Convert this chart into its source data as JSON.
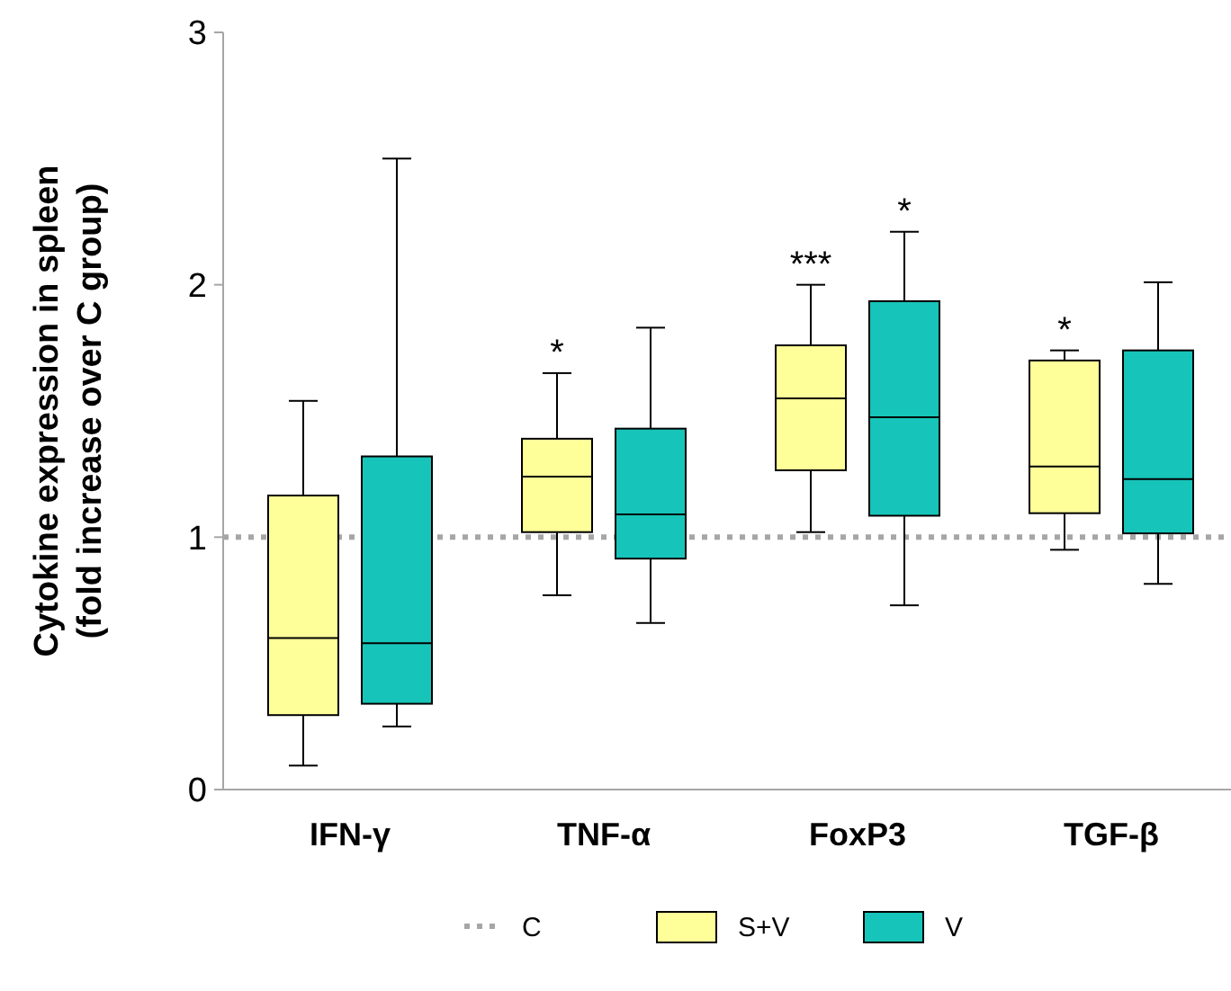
{
  "chart_data": {
    "type": "box",
    "ylabel": "Cytokine expression in spleen\n(fold increase over C group)",
    "categories": [
      "IFN-γ",
      "TNF-α",
      "FoxP3",
      "TGF-β"
    ],
    "series": [
      {
        "name": "S+V",
        "color": "#ffff99",
        "boxes": [
          {
            "low": 0.095,
            "q1": 0.295,
            "median": 0.6,
            "q3": 1.165,
            "high": 1.54
          },
          {
            "low": 0.77,
            "q1": 1.02,
            "median": 1.24,
            "q3": 1.39,
            "high": 1.65
          },
          {
            "low": 1.02,
            "q1": 1.265,
            "median": 1.55,
            "q3": 1.76,
            "high": 2.0
          },
          {
            "low": 0.95,
            "q1": 1.095,
            "median": 1.28,
            "q3": 1.7,
            "high": 1.74
          }
        ]
      },
      {
        "name": "V",
        "color": "#17c4b9",
        "boxes": [
          {
            "low": 0.25,
            "q1": 0.34,
            "median": 0.58,
            "q3": 1.32,
            "high": 2.5
          },
          {
            "low": 0.66,
            "q1": 0.915,
            "median": 1.09,
            "q3": 1.43,
            "high": 1.83
          },
          {
            "low": 0.73,
            "q1": 1.085,
            "median": 1.475,
            "q3": 1.935,
            "high": 2.21
          },
          {
            "low": 0.815,
            "q1": 1.015,
            "median": 1.23,
            "q3": 1.74,
            "high": 2.01
          }
        ]
      }
    ],
    "ylim": [
      0,
      3
    ],
    "yticks": [
      0,
      1,
      2,
      3
    ],
    "grid": false,
    "legend": "bottom",
    "ref_lines": [
      {
        "axis": "y",
        "value": 1,
        "label": "C",
        "color": "#a6a6a6",
        "line_style": "dotted"
      }
    ],
    "annotations": [
      "*",
      "***",
      "*",
      "*"
    ]
  }
}
